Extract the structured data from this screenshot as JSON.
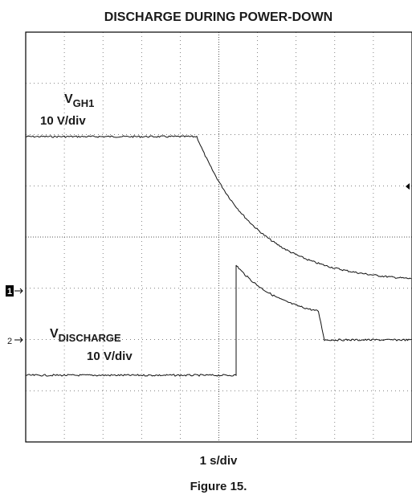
{
  "figure": {
    "title": "DISCHARGE DURING POWER-DOWN",
    "traces": [
      {
        "name": "V",
        "sub": "GH1",
        "scale": "10 V/div"
      },
      {
        "name": "V",
        "sub": "DISCHARGE",
        "scale": "10 V/div"
      }
    ],
    "markers": [
      "1",
      "2"
    ],
    "x_axis_label": "1 s/div",
    "caption": "Figure 15."
  }
}
